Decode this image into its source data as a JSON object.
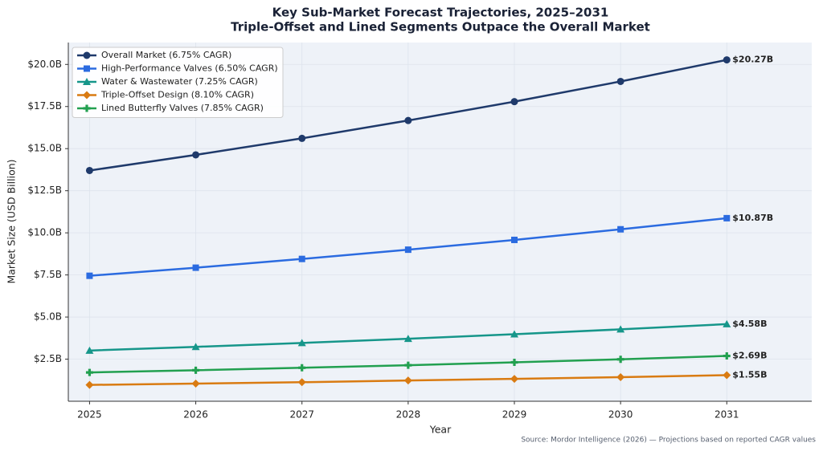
{
  "chart_data": {
    "type": "line",
    "title": "Key Sub-Market Forecast Trajectories, 2025–2031",
    "subtitle": "Triple-Offset and Lined Segments Outpace the Overall Market",
    "x_label": "Year",
    "y_label": "Market Size (USD Billion)",
    "source": "Source: Mordor Intelligence (2026) — Projections based on reported CAGR values",
    "x": [
      2025,
      2026,
      2027,
      2028,
      2029,
      2030,
      2031
    ],
    "xlim": [
      2024.8,
      2031.8
    ],
    "xticks": [
      2025,
      2026,
      2027,
      2028,
      2029,
      2030,
      2031
    ],
    "ylim": [
      0,
      21.3
    ],
    "yticks": [
      {
        "value": 2.5,
        "label": "$2.5B"
      },
      {
        "value": 5,
        "label": "$5.0B"
      },
      {
        "value": 7.5,
        "label": "$7.5B"
      },
      {
        "value": 10,
        "label": "$10.0B"
      },
      {
        "value": 12.5,
        "label": "$12.5B"
      },
      {
        "value": 15,
        "label": "$15.0B"
      },
      {
        "value": 17.5,
        "label": "$17.5B"
      },
      {
        "value": 20,
        "label": "$20.0B"
      }
    ],
    "grid": true,
    "legend": "upper left",
    "series": [
      {
        "name": "Overall Market (6.75% CAGR)",
        "color": "#1f3a6b",
        "marker": "circle",
        "values": [
          13.7,
          14.63,
          15.61,
          16.67,
          17.79,
          18.99,
          20.27
        ],
        "value_labels": [
          null,
          null,
          null,
          null,
          null,
          null,
          "$20.27B"
        ]
      },
      {
        "name": "High-Performance Valves (6.50% CAGR)",
        "color": "#2b6be0",
        "marker": "square",
        "values": [
          7.45,
          7.93,
          8.45,
          9.0,
          9.58,
          10.21,
          10.87
        ],
        "value_labels": [
          null,
          null,
          null,
          null,
          null,
          null,
          "$10.87B"
        ]
      },
      {
        "name": "Water & Wastewater (7.25% CAGR)",
        "color": "#16968a",
        "marker": "triangle",
        "values": [
          3.01,
          3.23,
          3.46,
          3.71,
          3.98,
          4.27,
          4.58
        ],
        "value_labels": [
          null,
          null,
          null,
          null,
          null,
          null,
          "$4.58B"
        ]
      },
      {
        "name": "Triple-Offset Design (8.10% CAGR)",
        "color": "#d97b12",
        "marker": "diamond",
        "values": [
          0.97,
          1.05,
          1.13,
          1.23,
          1.33,
          1.43,
          1.55
        ],
        "value_labels": [
          null,
          null,
          null,
          null,
          null,
          null,
          "$1.55B"
        ]
      },
      {
        "name": "Lined Butterfly Valves (7.85% CAGR)",
        "color": "#22a050",
        "marker": "plus",
        "values": [
          1.71,
          1.84,
          1.99,
          2.14,
          2.31,
          2.49,
          2.69
        ],
        "value_labels": [
          null,
          null,
          null,
          null,
          null,
          null,
          "$2.69B"
        ]
      }
    ]
  }
}
